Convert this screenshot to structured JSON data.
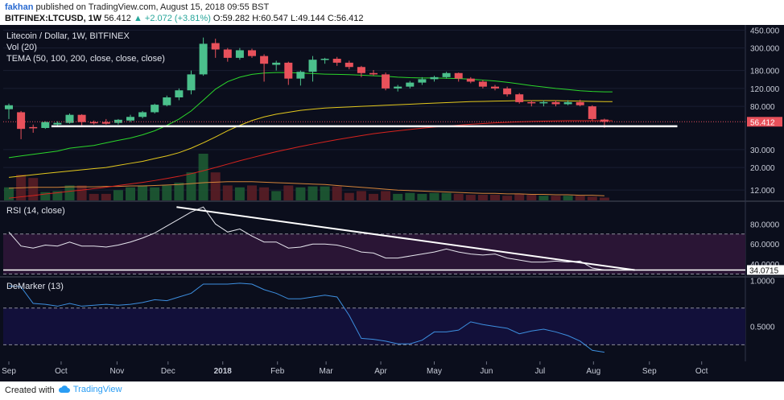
{
  "header": {
    "author": "fakhan",
    "published": "published on TradingView.com, August 15, 2018 09:55 BST",
    "symbol": "BITFINEX:LTCUSD, 1W",
    "last": "56.412",
    "change": "▲ +2.072 (+3.81%)",
    "o": "O:59.282",
    "h": "H:60.547",
    "l": "L:49.144",
    "c": "C:56.412"
  },
  "footer": {
    "created_with": "Created with",
    "brand": "TradingView"
  },
  "colors": {
    "bg": "#0b0e1c",
    "up": "#4bc08c",
    "down": "#e8515b",
    "tema_green": "#2bd62b",
    "tema_yellow": "#e3c81c",
    "tema_red": "#d7231e",
    "vol_ma": "#d4843a",
    "rsi_band": "#2a1535",
    "dem_band": "#12103a",
    "white": "#ffffff"
  },
  "chart_data": [
    {
      "type": "candlestick",
      "title": "Litecoin / Dollar, 1W, BITFINEX",
      "legend": [
        "Vol (20)",
        "TEMA (50, 100, 200, close, close, close)"
      ],
      "y_scale": "log",
      "y_ticks": [
        "450.000",
        "300.000",
        "180.000",
        "120.000",
        "80.000",
        "56.412",
        "30.000",
        "20.000",
        "12.000"
      ],
      "last_price_label": "56.412",
      "x_ticks": [
        "Sep",
        "Oct",
        "Nov",
        "Dec",
        "2018",
        "Feb",
        "Mar",
        "Apr",
        "May",
        "Jun",
        "Jul",
        "Aug",
        "Sep",
        "Oct"
      ],
      "x_tick_weeks": [
        0,
        4.3,
        8.9,
        13.1,
        17.6,
        22.1,
        26.1,
        30.6,
        35.0,
        39.3,
        43.7,
        48.1,
        52.7,
        57.0
      ],
      "candles": [
        {
          "w": 0,
          "o": 75,
          "h": 85,
          "l": 60,
          "c": 82
        },
        {
          "w": 1,
          "o": 70,
          "h": 72,
          "l": 38,
          "c": 48
        },
        {
          "w": 2,
          "o": 50,
          "h": 53,
          "l": 44,
          "c": 49
        },
        {
          "w": 3,
          "o": 49,
          "h": 57,
          "l": 48,
          "c": 56
        },
        {
          "w": 4,
          "o": 53,
          "h": 57,
          "l": 51,
          "c": 55
        },
        {
          "w": 5,
          "o": 55,
          "h": 68,
          "l": 54,
          "c": 66
        },
        {
          "w": 6,
          "o": 66,
          "h": 67,
          "l": 52,
          "c": 56
        },
        {
          "w": 7,
          "o": 56,
          "h": 58,
          "l": 53,
          "c": 55
        },
        {
          "w": 8,
          "o": 56,
          "h": 60,
          "l": 53,
          "c": 54
        },
        {
          "w": 9,
          "o": 55,
          "h": 60,
          "l": 53,
          "c": 59
        },
        {
          "w": 10,
          "o": 58,
          "h": 66,
          "l": 56,
          "c": 63
        },
        {
          "w": 11,
          "o": 63,
          "h": 72,
          "l": 61,
          "c": 70
        },
        {
          "w": 12,
          "o": 70,
          "h": 85,
          "l": 68,
          "c": 83
        },
        {
          "w": 13,
          "o": 82,
          "h": 102,
          "l": 80,
          "c": 98
        },
        {
          "w": 14,
          "o": 98,
          "h": 120,
          "l": 92,
          "c": 115
        },
        {
          "w": 15,
          "o": 115,
          "h": 180,
          "l": 105,
          "c": 165
        },
        {
          "w": 16,
          "o": 165,
          "h": 380,
          "l": 160,
          "c": 330
        },
        {
          "w": 17,
          "o": 335,
          "h": 370,
          "l": 240,
          "c": 290
        },
        {
          "w": 18,
          "o": 290,
          "h": 300,
          "l": 220,
          "c": 240
        },
        {
          "w": 19,
          "o": 240,
          "h": 300,
          "l": 230,
          "c": 285
        },
        {
          "w": 20,
          "o": 285,
          "h": 295,
          "l": 240,
          "c": 250
        },
        {
          "w": 21,
          "o": 250,
          "h": 260,
          "l": 140,
          "c": 210
        },
        {
          "w": 22,
          "o": 205,
          "h": 225,
          "l": 180,
          "c": 215
        },
        {
          "w": 23,
          "o": 215,
          "h": 220,
          "l": 130,
          "c": 150
        },
        {
          "w": 24,
          "o": 150,
          "h": 180,
          "l": 128,
          "c": 175
        },
        {
          "w": 25,
          "o": 175,
          "h": 250,
          "l": 140,
          "c": 230
        },
        {
          "w": 26,
          "o": 230,
          "h": 240,
          "l": 210,
          "c": 235
        },
        {
          "w": 27,
          "o": 235,
          "h": 245,
          "l": 200,
          "c": 215
        },
        {
          "w": 28,
          "o": 215,
          "h": 225,
          "l": 185,
          "c": 195
        },
        {
          "w": 29,
          "o": 195,
          "h": 200,
          "l": 155,
          "c": 170
        },
        {
          "w": 30,
          "o": 170,
          "h": 182,
          "l": 160,
          "c": 165
        },
        {
          "w": 31,
          "o": 165,
          "h": 172,
          "l": 115,
          "c": 120
        },
        {
          "w": 32,
          "o": 120,
          "h": 130,
          "l": 112,
          "c": 125
        },
        {
          "w": 33,
          "o": 125,
          "h": 142,
          "l": 120,
          "c": 137
        },
        {
          "w": 34,
          "o": 137,
          "h": 155,
          "l": 130,
          "c": 148
        },
        {
          "w": 35,
          "o": 148,
          "h": 160,
          "l": 140,
          "c": 155
        },
        {
          "w": 36,
          "o": 155,
          "h": 175,
          "l": 150,
          "c": 170
        },
        {
          "w": 37,
          "o": 170,
          "h": 172,
          "l": 140,
          "c": 150
        },
        {
          "w": 38,
          "o": 150,
          "h": 155,
          "l": 135,
          "c": 140
        },
        {
          "w": 39,
          "o": 140,
          "h": 145,
          "l": 120,
          "c": 125
        },
        {
          "w": 40,
          "o": 125,
          "h": 130,
          "l": 115,
          "c": 120
        },
        {
          "w": 41,
          "o": 120,
          "h": 125,
          "l": 100,
          "c": 105
        },
        {
          "w": 42,
          "o": 105,
          "h": 108,
          "l": 85,
          "c": 88
        },
        {
          "w": 43,
          "o": 88,
          "h": 92,
          "l": 80,
          "c": 86
        },
        {
          "w": 44,
          "o": 86,
          "h": 92,
          "l": 80,
          "c": 88
        },
        {
          "w": 45,
          "o": 88,
          "h": 92,
          "l": 80,
          "c": 84
        },
        {
          "w": 46,
          "o": 84,
          "h": 92,
          "l": 82,
          "c": 88
        },
        {
          "w": 47,
          "o": 88,
          "h": 93,
          "l": 80,
          "c": 82
        },
        {
          "w": 48,
          "o": 80,
          "h": 82,
          "l": 58,
          "c": 60
        },
        {
          "w": 49,
          "o": 59.282,
          "h": 60.547,
          "l": 49.144,
          "c": 56.412
        }
      ],
      "volume": [
        0.28,
        0.55,
        0.48,
        0.18,
        0.2,
        0.32,
        0.32,
        0.14,
        0.14,
        0.22,
        0.28,
        0.32,
        0.28,
        0.32,
        0.38,
        0.6,
        1.0,
        0.6,
        0.32,
        0.28,
        0.32,
        0.28,
        0.2,
        0.32,
        0.28,
        0.3,
        0.3,
        0.3,
        0.16,
        0.2,
        0.14,
        0.2,
        0.14,
        0.16,
        0.14,
        0.16,
        0.16,
        0.14,
        0.12,
        0.12,
        0.12,
        0.1,
        0.14,
        0.12,
        0.1,
        0.1,
        0.1,
        0.1,
        0.08,
        0.06
      ],
      "volume_ma": [
        0.26,
        0.27,
        0.28,
        0.28,
        0.28,
        0.29,
        0.29,
        0.29,
        0.3,
        0.3,
        0.31,
        0.31,
        0.32,
        0.33,
        0.34,
        0.36,
        0.38,
        0.39,
        0.4,
        0.4,
        0.4,
        0.39,
        0.38,
        0.37,
        0.36,
        0.35,
        0.34,
        0.32,
        0.3,
        0.28,
        0.26,
        0.24,
        0.22,
        0.21,
        0.2,
        0.19,
        0.18,
        0.17,
        0.16,
        0.15,
        0.15,
        0.14,
        0.14,
        0.13,
        0.13,
        0.12,
        0.12,
        0.11,
        0.11,
        0.1
      ],
      "tema_50": [
        25,
        26,
        27,
        28,
        29,
        31,
        32,
        33,
        35,
        37,
        39,
        42,
        46,
        52,
        60,
        72,
        92,
        118,
        140,
        155,
        165,
        170,
        172,
        172,
        170,
        168,
        166,
        165,
        164,
        162,
        160,
        158,
        155,
        153,
        152,
        152,
        151,
        150,
        148,
        145,
        142,
        138,
        133,
        128,
        124,
        120,
        117,
        114,
        112,
        111
      ],
      "tema_100": [
        16,
        16.5,
        17,
        17.5,
        18,
        18.5,
        19,
        19.5,
        20,
        21,
        22,
        23,
        24.5,
        26,
        28,
        31,
        35,
        40,
        46,
        52,
        58,
        63,
        67,
        70,
        73,
        75,
        77,
        78,
        79,
        80,
        81,
        82,
        83,
        84,
        85,
        86,
        87,
        88,
        89,
        89.5,
        90,
        90.5,
        91,
        91,
        91,
        91,
        90.5,
        90,
        89.5,
        89
      ],
      "tema_200": [
        10,
        10.3,
        10.6,
        11,
        11.3,
        11.7,
        12,
        12.4,
        12.8,
        13.3,
        13.8,
        14.3,
        14.9,
        15.6,
        16.4,
        17.4,
        18.6,
        20,
        21.6,
        23.3,
        25,
        26.8,
        28.6,
        30.4,
        32.2,
        34,
        35.8,
        37.6,
        39.4,
        41.2,
        43,
        44.5,
        46,
        47.4,
        48.8,
        50,
        51.2,
        52.3,
        53.3,
        54.2,
        55,
        55.7,
        56.3,
        56.8,
        57.2,
        57.5,
        57.7,
        57.8,
        57.8,
        57.8
      ],
      "support_line": {
        "from_week": 3.5,
        "to_week": 55,
        "value": 51
      }
    },
    {
      "type": "line",
      "title": "RSI (14, close)",
      "y_ticks": [
        "80.0000",
        "60.0000",
        "40.0000"
      ],
      "last_label": "34.0715",
      "bands": [
        70,
        30
      ],
      "values": [
        72,
        58,
        56,
        59,
        58,
        62,
        58,
        58,
        57,
        59,
        62,
        66,
        71,
        78,
        85,
        92,
        97,
        80,
        72,
        75,
        68,
        62,
        62,
        56,
        57,
        60,
        60,
        59,
        56,
        52,
        51,
        46,
        46,
        48,
        50,
        52,
        55,
        52,
        50,
        49,
        50,
        46,
        44,
        42,
        42,
        43,
        42,
        43,
        36,
        34.07
      ],
      "trendline": {
        "from_week": 13.8,
        "from_value": 97,
        "to_week": 51.5,
        "to_value": 34
      }
    },
    {
      "type": "line",
      "title": "DeMarker (13)",
      "y_ticks": [
        "1.0000",
        "0.5000"
      ],
      "bands": [
        0.7,
        0.3
      ],
      "values": [
        0.94,
        0.93,
        0.75,
        0.74,
        0.72,
        0.75,
        0.72,
        0.73,
        0.74,
        0.73,
        0.74,
        0.76,
        0.79,
        0.78,
        0.82,
        0.86,
        0.96,
        0.96,
        0.96,
        0.97,
        0.96,
        0.9,
        0.86,
        0.8,
        0.8,
        0.82,
        0.84,
        0.82,
        0.62,
        0.37,
        0.36,
        0.34,
        0.31,
        0.31,
        0.35,
        0.44,
        0.44,
        0.46,
        0.55,
        0.52,
        0.5,
        0.48,
        0.42,
        0.45,
        0.47,
        0.44,
        0.4,
        0.34,
        0.24,
        0.22
      ]
    }
  ]
}
